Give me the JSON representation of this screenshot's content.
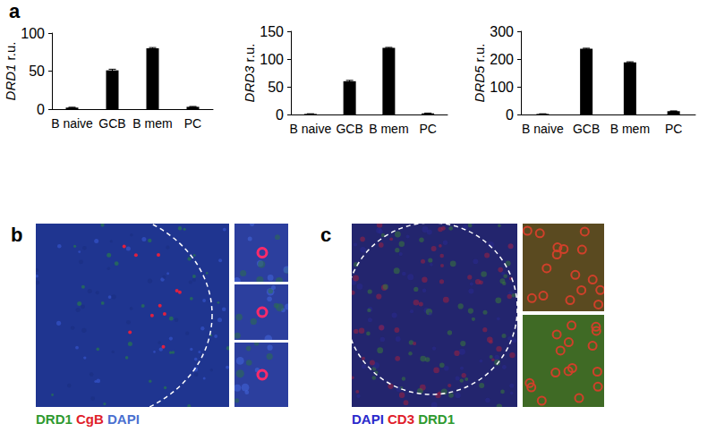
{
  "chart_data": [
    {
      "type": "bar",
      "ylabel": "DRD1 r.u.",
      "categories": [
        "B naive",
        "GCB",
        "B mem",
        "PC"
      ],
      "values": [
        2,
        51,
        80,
        3
      ],
      "errors": [
        0.5,
        1.5,
        1,
        0.5
      ],
      "color": "#000000",
      "ylim": [
        0,
        100
      ],
      "yticks": [
        0,
        50,
        100
      ],
      "grid": false
    },
    {
      "type": "bar",
      "ylabel": "DRD3 r.u.",
      "categories": [
        "B naive",
        "GCB",
        "B mem",
        "PC"
      ],
      "values": [
        1,
        60,
        120,
        2
      ],
      "errors": [
        0.3,
        1.5,
        1,
        0.5
      ],
      "color": "#000000",
      "ylim": [
        0,
        150
      ],
      "yticks": [
        0,
        50,
        100,
        150
      ],
      "grid": false
    },
    {
      "type": "bar",
      "ylabel": "DRD5 r.u.",
      "categories": [
        "B naive",
        "GCB",
        "B mem",
        "PC"
      ],
      "values": [
        2,
        237,
        188,
        12
      ],
      "errors": [
        0.5,
        2,
        2,
        1
      ],
      "color": "#000000",
      "ylim": [
        0,
        300
      ],
      "yticks": [
        0,
        100,
        200,
        300
      ],
      "grid": false
    }
  ],
  "panels": [
    {
      "label": "a"
    },
    {
      "label": "b",
      "legend": [
        {
          "text": "DRD1",
          "color": "#2f9a2f"
        },
        {
          "text": "CgB",
          "color": "#e0202a"
        },
        {
          "text": "DAPI",
          "color": "#4a70d0"
        }
      ]
    },
    {
      "label": "c",
      "legend": [
        {
          "text": "DAPI",
          "color": "#2a2acc"
        },
        {
          "text": "CD3",
          "color": "#e0202a"
        },
        {
          "text": "DRD1",
          "color": "#2f9a2f"
        }
      ]
    }
  ]
}
